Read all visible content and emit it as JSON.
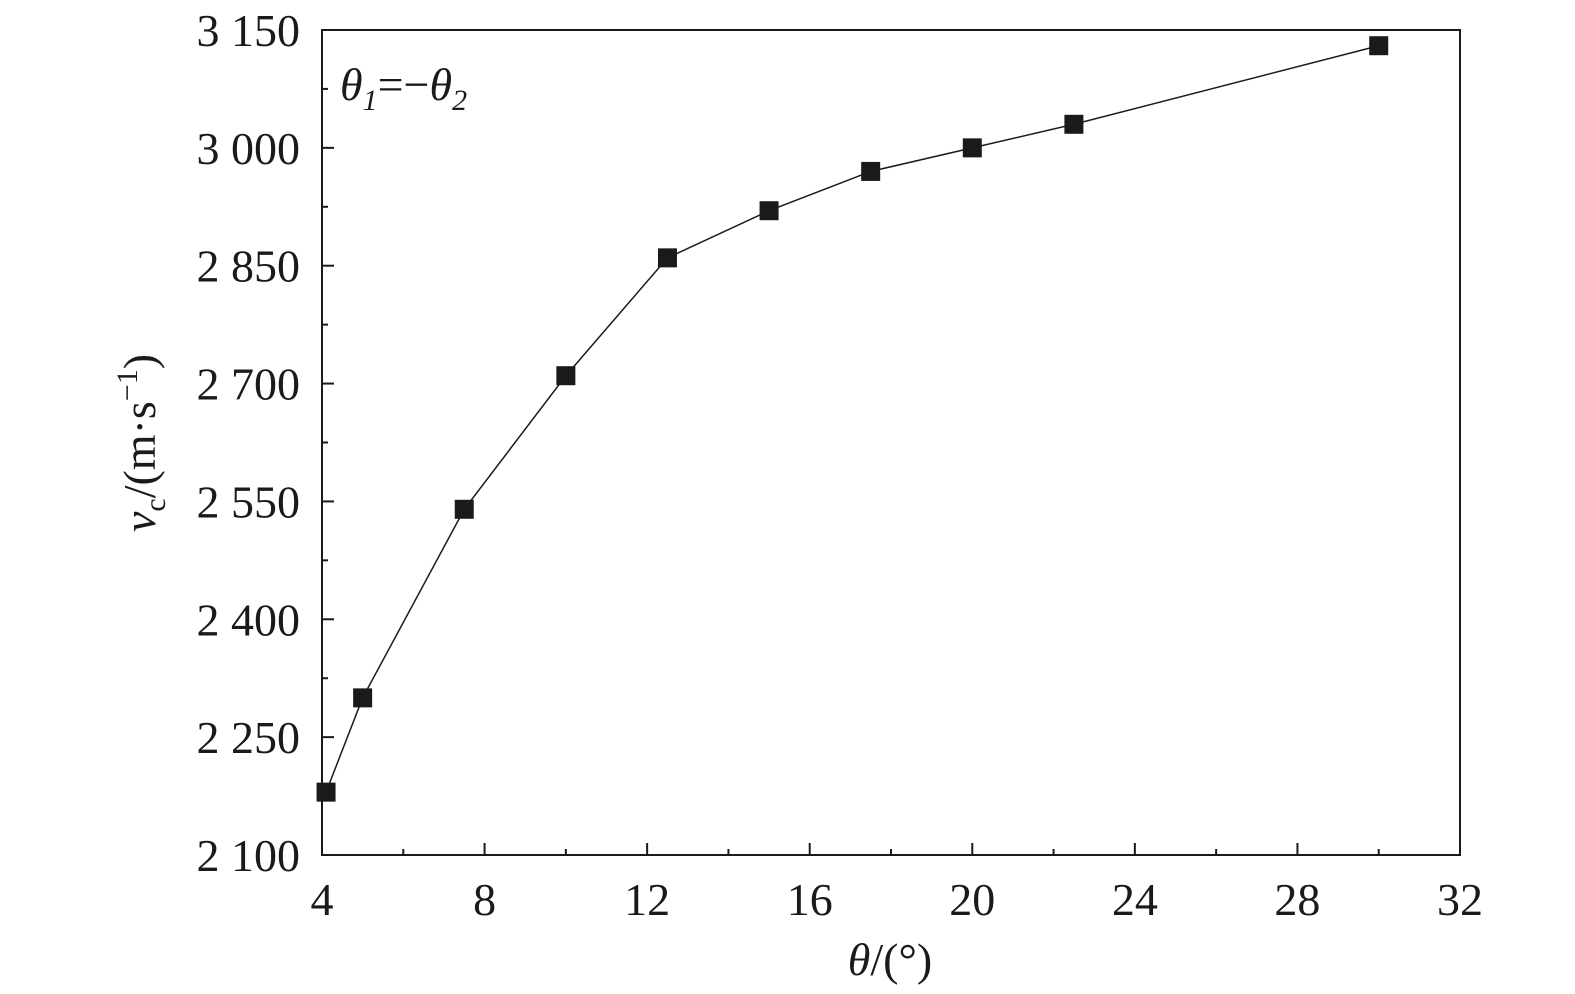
{
  "chart_data": {
    "type": "line",
    "x": [
      4.1,
      5,
      7.5,
      10,
      12.5,
      15,
      17.5,
      20,
      22.5,
      30
    ],
    "series": [
      {
        "values": [
          2180,
          2300,
          2540,
          2710,
          2860,
          2920,
          2970,
          3000,
          3030,
          3130
        ]
      }
    ],
    "xlabel": {
      "main": "θ",
      "unit": "/(°)"
    },
    "ylabel": {
      "main": "v",
      "sub": "c",
      "unit": "/(m·s",
      "sup": "−1",
      "close": ")"
    },
    "xlim": [
      4,
      32
    ],
    "ylim": [
      2100,
      3150
    ],
    "xticks": [
      "4",
      "8",
      "12",
      "16",
      "20",
      "24",
      "28",
      "32"
    ],
    "xtick_values": [
      4,
      8,
      12,
      16,
      20,
      24,
      28,
      32
    ],
    "yticks": [
      "2 100",
      "2 250",
      "2 400",
      "2 550",
      "2 700",
      "2 850",
      "3 000",
      "3 150"
    ],
    "ytick_values": [
      2100,
      2250,
      2400,
      2550,
      2700,
      2850,
      3000,
      3150
    ],
    "annotation": {
      "a": "θ",
      "a_sub": "1",
      "eq": "=−",
      "b": "θ",
      "b_sub": "2"
    },
    "marker": "square",
    "grid": false,
    "colors": {
      "line": "#1a1a1a",
      "marker": "#1a1a1a",
      "axis": "#1a1a1a"
    }
  }
}
